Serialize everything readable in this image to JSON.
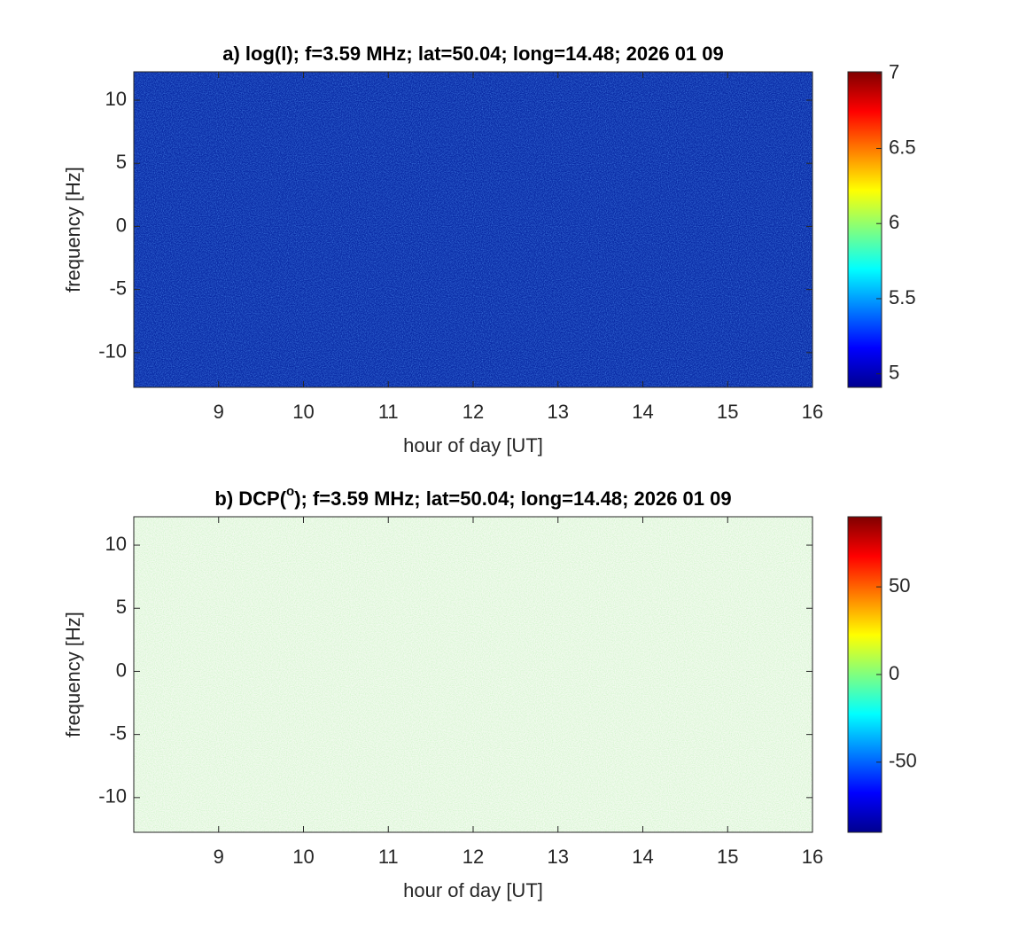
{
  "chart_data": [
    {
      "type": "heatmap",
      "title": "a) log(I); f=3.59 MHz;  lat=50.04; long=14.48; 2026 01 09",
      "xlabel": "hour of day [UT]",
      "ylabel": "frequency [Hz]",
      "xlim": [
        8,
        16
      ],
      "xticks": [
        9,
        10,
        11,
        12,
        13,
        14,
        15,
        16
      ],
      "ylim": [
        -12.75,
        12.25
      ],
      "yticks": [
        -10,
        -5,
        0,
        5,
        10
      ],
      "colorbar": {
        "lim": [
          4.91,
          7.01
        ],
        "ticks": [
          5,
          5.5,
          6,
          6.5,
          7
        ]
      }
    },
    {
      "type": "heatmap",
      "title": [
        "b) DCP(",
        "o",
        "); f=3.59 MHz;  lat=50.04; long=14.48; 2026 01 09"
      ],
      "xlabel": "hour of day [UT]",
      "ylabel": "frequency [Hz]",
      "xlim": [
        8,
        16
      ],
      "xticks": [
        9,
        10,
        11,
        12,
        13,
        14,
        15,
        16
      ],
      "ylim": [
        -12.75,
        12.25
      ],
      "yticks": [
        -10,
        -5,
        0,
        5,
        10
      ],
      "colorbar": {
        "lim": [
          -90,
          90
        ],
        "ticks": [
          -50,
          0,
          50
        ]
      }
    }
  ]
}
